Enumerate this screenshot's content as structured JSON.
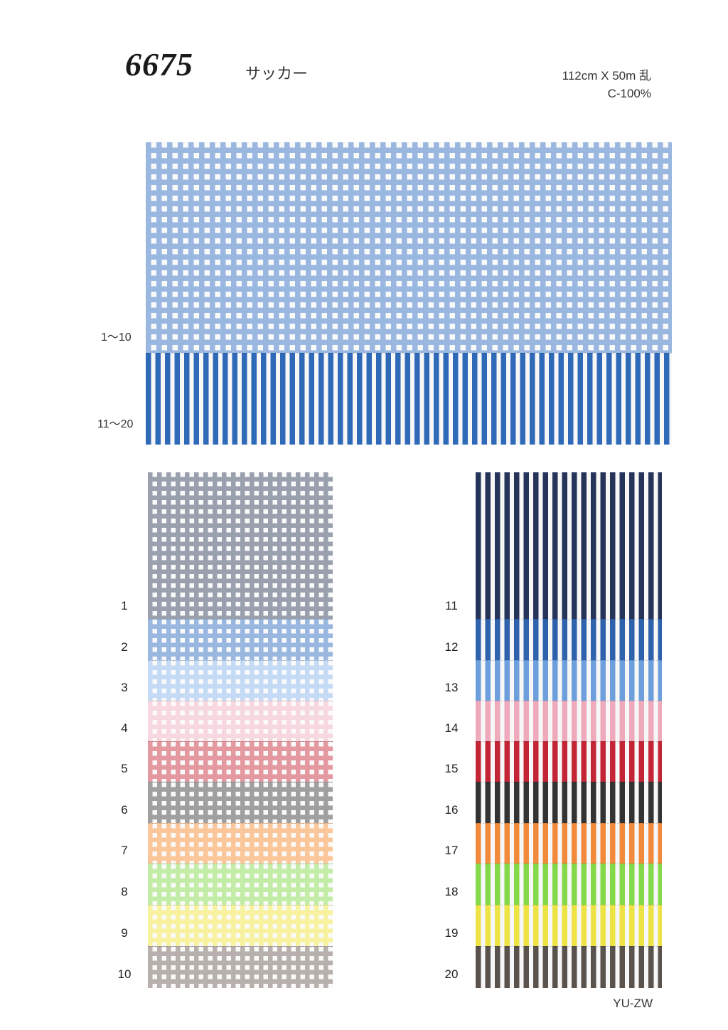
{
  "header": {
    "article_number": "6675",
    "fabric_name": "サッカー",
    "width_length": "112cm X 50m 乱",
    "fiber": "C-100%"
  },
  "hero": {
    "range_labels": [
      "1〜10",
      "11〜20"
    ]
  },
  "gingham_swatches": [
    {
      "number": "1",
      "color": "#1f2c4a"
    },
    {
      "number": "2",
      "color": "#1c5fb8"
    },
    {
      "number": "3",
      "color": "#7fb0e8"
    },
    {
      "number": "4",
      "color": "#f0a9bb"
    },
    {
      "number": "5",
      "color": "#c41a2c"
    },
    {
      "number": "6",
      "color": "#2b2b2b"
    },
    {
      "number": "7",
      "color": "#f5821f"
    },
    {
      "number": "8",
      "color": "#79d63a"
    },
    {
      "number": "9",
      "color": "#efe32c"
    },
    {
      "number": "10",
      "color": "#5e4f46"
    }
  ],
  "stripe_swatches": [
    {
      "number": "11",
      "color": "#26345a"
    },
    {
      "number": "12",
      "color": "#2f62ad"
    },
    {
      "number": "13",
      "color": "#6d9fdd"
    },
    {
      "number": "14",
      "color": "#eeaabb"
    },
    {
      "number": "15",
      "color": "#c42536"
    },
    {
      "number": "16",
      "color": "#333333"
    },
    {
      "number": "17",
      "color": "#f18a3a"
    },
    {
      "number": "18",
      "color": "#84d94a"
    },
    {
      "number": "19",
      "color": "#eee344"
    },
    {
      "number": "20",
      "color": "#5a524d"
    }
  ],
  "hero_colors": {
    "gingham": "#1c5fb8",
    "stripe": "#2f6ab8"
  },
  "footer": {
    "mill_code": "YU-ZW"
  }
}
